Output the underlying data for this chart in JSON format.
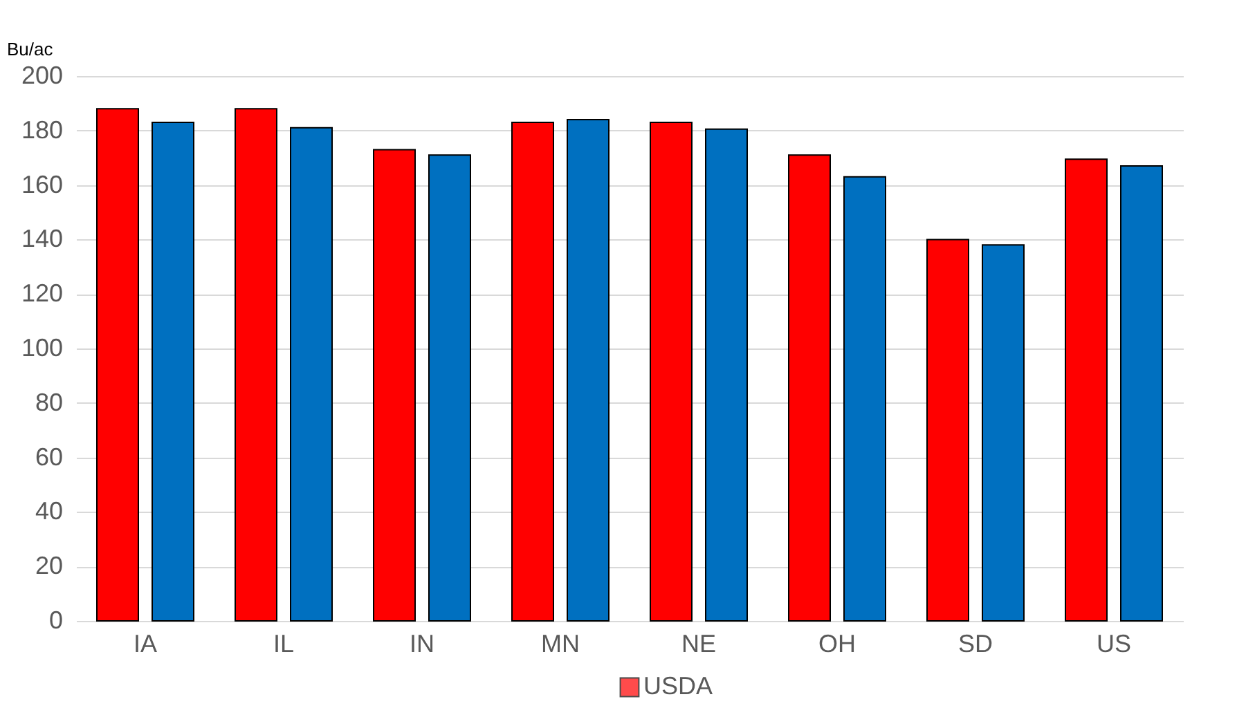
{
  "chart_data": {
    "type": "bar",
    "ylabel": "Bu/ac",
    "categories": [
      "IA",
      "IL",
      "IN",
      "MN",
      "NE",
      "OH",
      "SD",
      "US"
    ],
    "series": [
      {
        "name": "USDA",
        "color": "#ff0000",
        "values": [
          188,
          188,
          173,
          183,
          183,
          171,
          140,
          169.5
        ]
      },
      {
        "color": "#0070c0",
        "values": [
          183,
          181,
          171,
          184,
          180.5,
          163,
          138,
          167
        ]
      }
    ],
    "ylim": [
      0,
      200
    ],
    "yticks": [
      0,
      20,
      40,
      60,
      80,
      100,
      120,
      140,
      160,
      180,
      200
    ],
    "grid": "y",
    "legend": "bottom"
  }
}
